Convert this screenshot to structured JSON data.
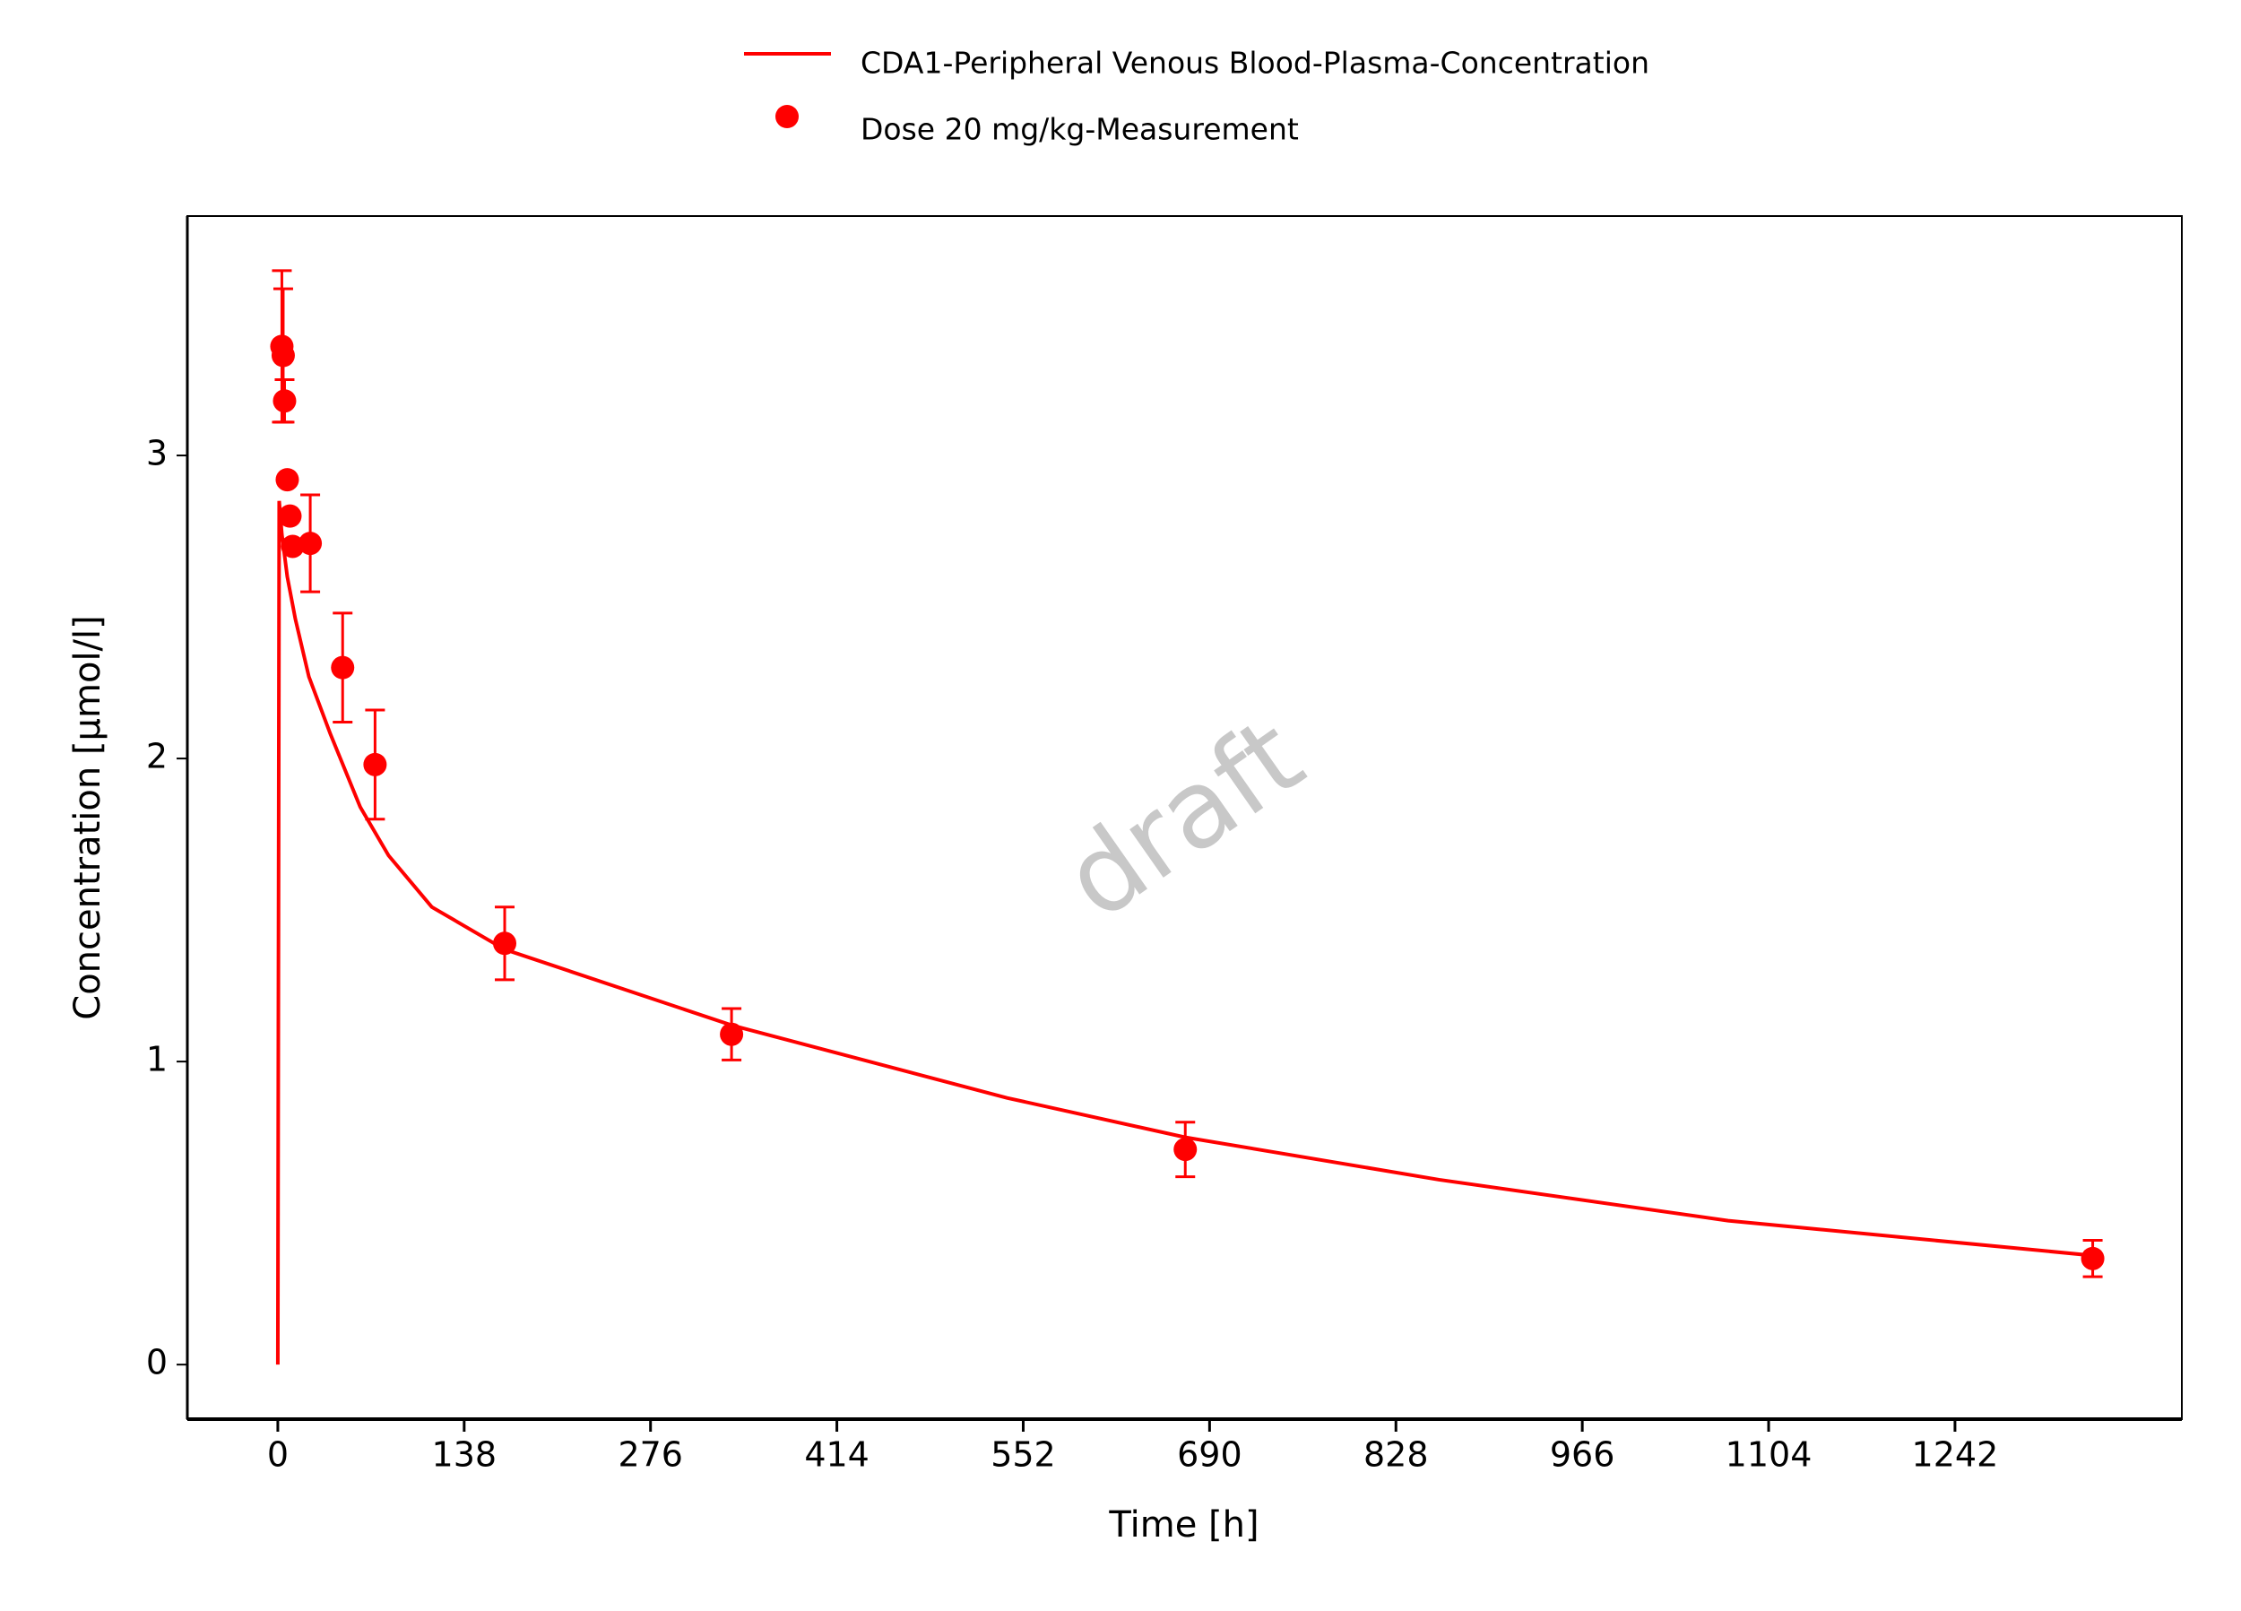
{
  "chart_data": {
    "type": "line+scatter",
    "xlabel": "Time [h]",
    "ylabel": "Concentration [µmol/l]",
    "watermark": "draft",
    "xlim": [
      -67,
      1410
    ],
    "ylim": [
      -0.18,
      3.79
    ],
    "xticks": [
      0,
      138,
      276,
      414,
      552,
      690,
      828,
      966,
      1104,
      1242
    ],
    "yticks": [
      0,
      1,
      2,
      3
    ],
    "series": [
      {
        "name": "CDA1-Peripheral Venous Blood-Plasma-Concentration",
        "kind": "line",
        "color": "#ff0000",
        "x": [
          0,
          1,
          3,
          7,
          13,
          23,
          39,
          61,
          82,
          114,
          168,
          336,
          540,
          672,
          860,
          1074,
          1344
        ],
        "values": [
          0,
          2.85,
          2.74,
          2.6,
          2.46,
          2.27,
          2.08,
          1.84,
          1.68,
          1.51,
          1.37,
          1.12,
          0.88,
          0.75,
          0.61,
          0.475,
          0.36
        ]
      },
      {
        "name": "Dose 20 mg/kg-Measurement",
        "kind": "scatter",
        "color": "#ff0000",
        "x": [
          3,
          4,
          5,
          7,
          9,
          11,
          24,
          48,
          72,
          168,
          336,
          672,
          1344
        ],
        "values": [
          3.36,
          3.33,
          3.18,
          2.92,
          2.8,
          2.7,
          2.71,
          2.3,
          1.98,
          1.39,
          1.09,
          0.71,
          0.35
        ],
        "errors": [
          0.25,
          0.22,
          0.07,
          0,
          0,
          0,
          0.16,
          0.18,
          0.18,
          0.12,
          0.085,
          0.09,
          0.06
        ]
      }
    ]
  }
}
